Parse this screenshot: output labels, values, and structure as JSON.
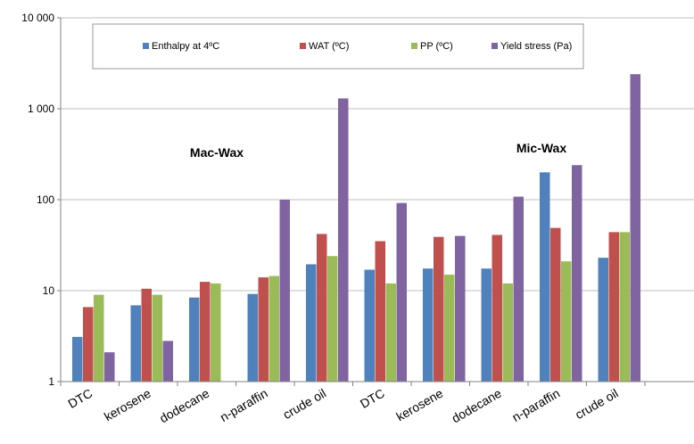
{
  "chart_data": {
    "type": "bar",
    "title": "",
    "xlabel": "",
    "ylabel": "",
    "yscale": "log",
    "ylim": [
      1,
      10000
    ],
    "yticks": [
      "1",
      "10",
      "100",
      "1 000",
      "10 000"
    ],
    "grid": "horizontal",
    "legend_position": "top",
    "categories": [
      "DTC",
      "kerosene",
      "dodecane",
      "n-paraffin",
      "crude oil",
      "DTC",
      "kerosene",
      "dodecane",
      "n-paraffin",
      "crude oil"
    ],
    "annotations": [
      "Mac-Wax",
      "Mic-Wax"
    ],
    "series": [
      {
        "name": "Enthalpy at 4ºC",
        "color": "#4f81bd",
        "values": [
          3.1,
          6.9,
          8.4,
          9.2,
          19.5,
          17,
          17.5,
          17.5,
          200,
          23
        ]
      },
      {
        "name": "WAT (ºC)",
        "color": "#c0504d",
        "values": [
          6.6,
          10.5,
          12.5,
          14,
          42,
          35,
          39,
          41,
          49,
          44
        ]
      },
      {
        "name": "PP (ºC)",
        "color": "#9bbb59",
        "values": [
          9,
          9,
          12,
          14.5,
          24,
          12,
          15,
          12,
          21,
          44
        ]
      },
      {
        "name": "Yield stress (Pa)",
        "color": "#8064a2",
        "values": [
          2.1,
          2.8,
          null,
          100,
          1300,
          92,
          40,
          108,
          240,
          2400
        ]
      }
    ]
  }
}
